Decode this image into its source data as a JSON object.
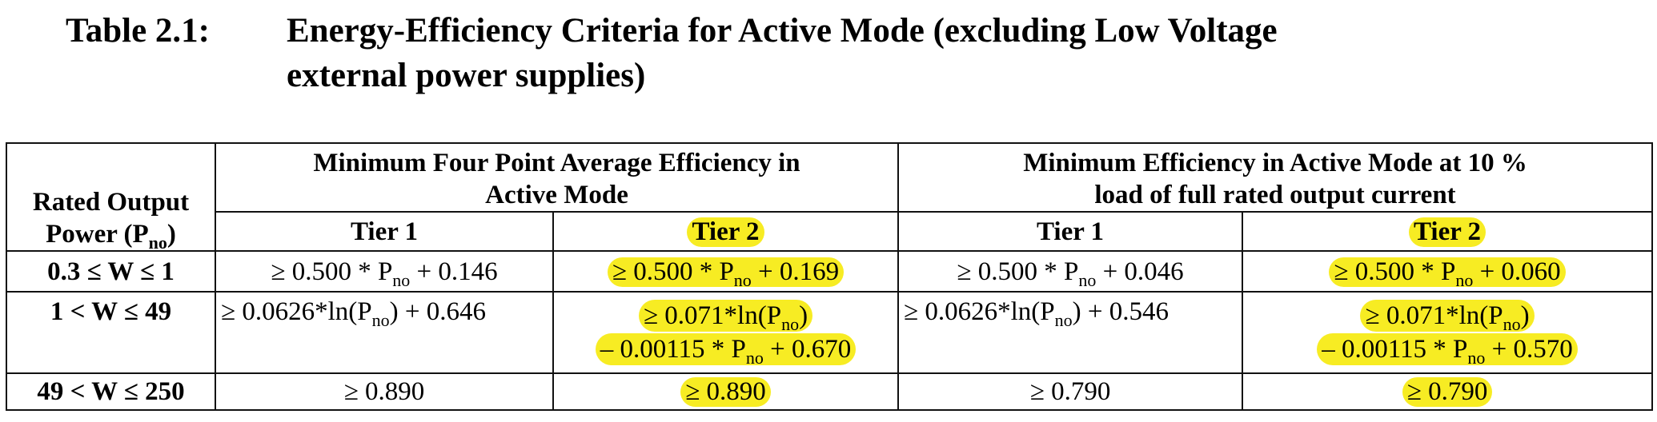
{
  "title": {
    "number": "Table 2.1:",
    "line1": "Energy-Efficiency Criteria for Active Mode (excluding Low Voltage",
    "line2": "external power supplies)"
  },
  "header": {
    "rated_output_line1": "Rated Output",
    "rated_output_line2": "Power (P",
    "rated_output_sub": "no",
    "rated_output_end": ")",
    "group1_line1": "Minimum Four Point Average Efficiency in",
    "group1_line2": "Active Mode",
    "group2_line1": "Minimum Efficiency in Active Mode at 10 %",
    "group2_line2": "load of full rated output current",
    "tier1": "Tier 1",
    "tier2": "Tier 2"
  },
  "rows": [
    {
      "range": "0.3 ≤ W ≤ 1",
      "c1": {
        "a": "≥ 0.500 * P",
        "sub": "no",
        "b": " + 0.146"
      },
      "c2": {
        "a": "≥ 0.500 * P",
        "sub": "no",
        "b": " + 0.169"
      },
      "c3": {
        "a": "≥ 0.500 * P",
        "sub": "no",
        "b": " + 0.046"
      },
      "c4": {
        "a": "≥ 0.500 * P",
        "sub": "no",
        "b": " + 0.060"
      }
    },
    {
      "range": "1 < W ≤ 49",
      "c1": {
        "a": "≥ 0.0626*ln(P",
        "sub": "no",
        "b": ") + 0.646"
      },
      "c2": {
        "l1a": "≥ 0.071*ln(P",
        "l1sub": "no",
        "l1b": ")",
        "l2a": "– 0.00115 * P",
        "l2sub": "no",
        "l2b": " + 0.670"
      },
      "c3": {
        "a": "≥ 0.0626*ln(P",
        "sub": "no",
        "b": ") + 0.546"
      },
      "c4": {
        "l1a": "≥ 0.071*ln(P",
        "l1sub": "no",
        "l1b": ")",
        "l2a": "– 0.00115 * P",
        "l2sub": "no",
        "l2b": " + 0.570"
      }
    },
    {
      "range": "49 < W ≤ 250",
      "c1": "≥ 0.890",
      "c2": "≥ 0.890",
      "c3": "≥ 0.790",
      "c4": "≥ 0.790"
    }
  ],
  "colors": {
    "highlight": "#f7ec23",
    "text": "#000000"
  }
}
